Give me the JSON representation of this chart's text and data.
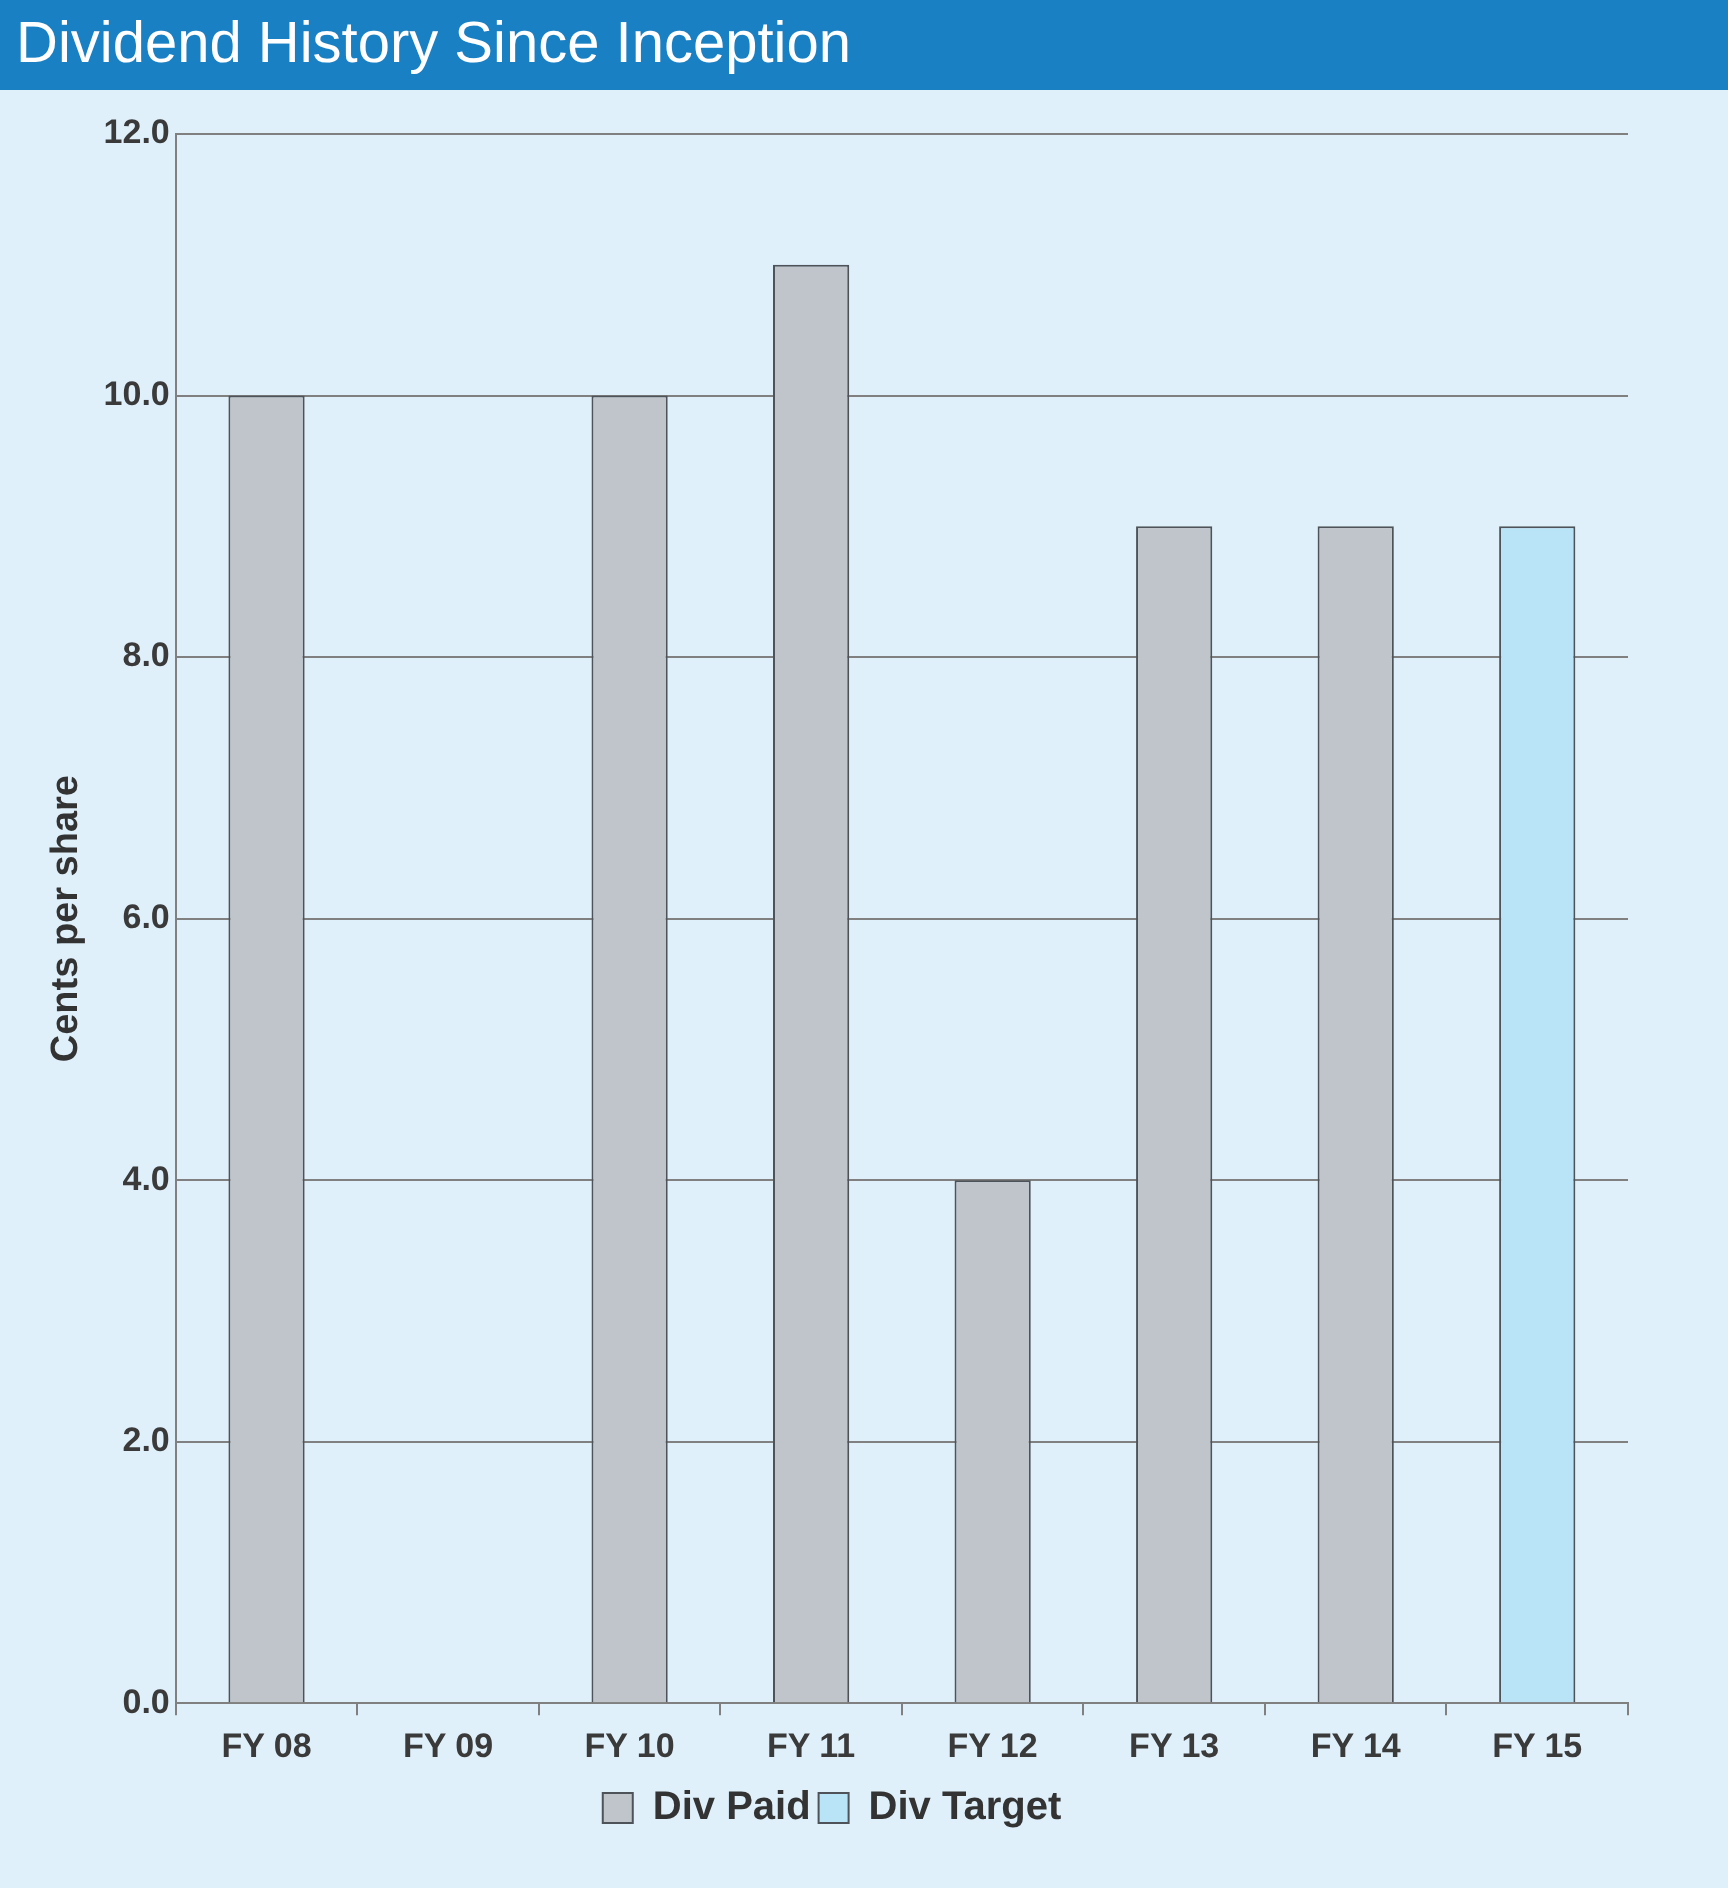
{
  "chart_data": {
    "type": "bar",
    "title": "Dividend History Since Inception",
    "ylabel": "Cents per share",
    "categories": [
      "FY 08",
      "FY 09",
      "FY 10",
      "FY 11",
      "FY 12",
      "FY 13",
      "FY 14",
      "FY 15"
    ],
    "series": [
      {
        "name": "Div Paid",
        "color": "#c0c5cb",
        "values": [
          10,
          null,
          10,
          11,
          4,
          9,
          9,
          null
        ]
      },
      {
        "name": "Div Target",
        "color": "#b9e3f7",
        "values": [
          null,
          null,
          null,
          null,
          null,
          null,
          null,
          9
        ]
      }
    ],
    "stacked": true,
    "ylim": [
      0,
      12
    ],
    "yticks": [
      {
        "value": 0,
        "label": "0.0"
      },
      {
        "value": 2,
        "label": "2.0"
      },
      {
        "value": 4,
        "label": "4.0"
      },
      {
        "value": 6,
        "label": "6.0"
      },
      {
        "value": 8,
        "label": "8.0"
      },
      {
        "value": 10,
        "label": "10.0"
      },
      {
        "value": 12,
        "label": "12.0"
      }
    ],
    "grid": "y",
    "legend": "bottom"
  }
}
